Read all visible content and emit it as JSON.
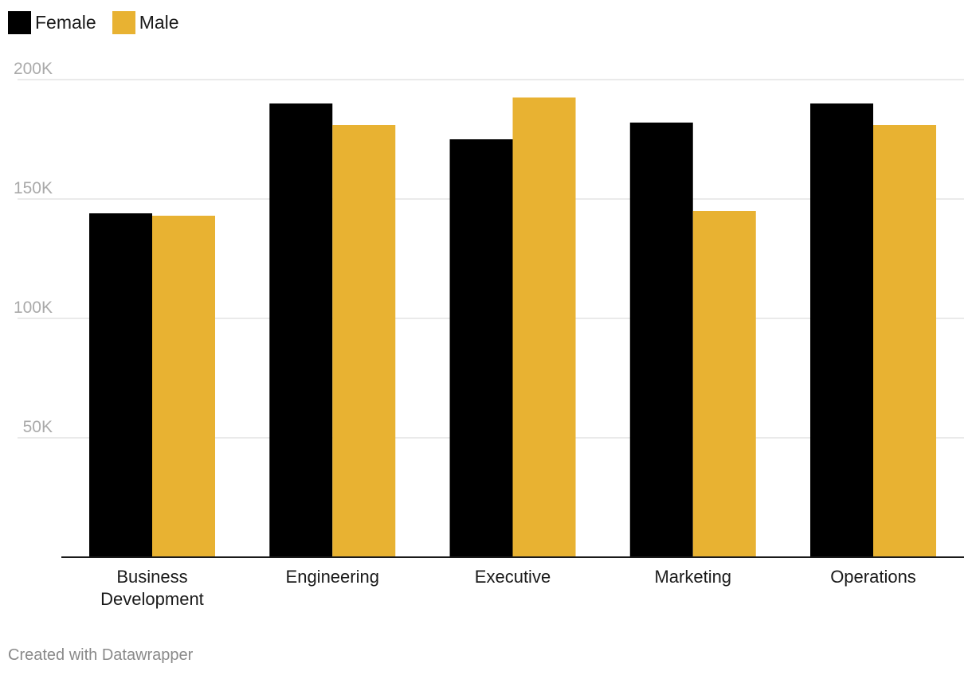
{
  "chart_data": {
    "type": "bar",
    "categories": [
      "Business Development",
      "Engineering",
      "Executive",
      "Marketing",
      "Operations"
    ],
    "category_lines": [
      [
        "Business",
        "Development"
      ],
      [
        "Engineering"
      ],
      [
        "Executive"
      ],
      [
        "Marketing"
      ],
      [
        "Operations"
      ]
    ],
    "series": [
      {
        "name": "Female",
        "color": "#000000",
        "values": [
          144000,
          190000,
          175000,
          182000,
          190000
        ]
      },
      {
        "name": "Male",
        "color": "#e8b232",
        "values": [
          143000,
          181000,
          192500,
          145000,
          181000
        ]
      }
    ],
    "ylim": [
      0,
      200000
    ],
    "yticks": [
      {
        "value": 50000,
        "label": "50K"
      },
      {
        "value": 100000,
        "label": "100K"
      },
      {
        "value": 150000,
        "label": "150K"
      },
      {
        "value": 200000,
        "label": "200K"
      }
    ],
    "grid": true,
    "legend_position": "top-left",
    "title": "",
    "xlabel": "",
    "ylabel": ""
  },
  "footer": {
    "credit": "Created with Datawrapper"
  }
}
